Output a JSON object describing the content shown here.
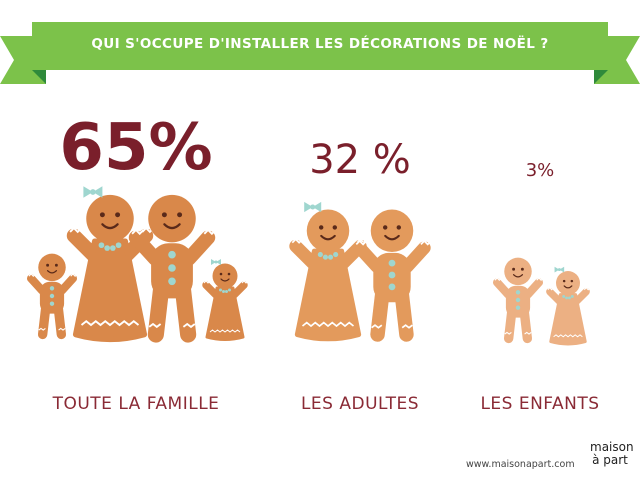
{
  "chart_data": {
    "type": "bar",
    "title": "QUI S'OCCUPE D'INSTALLER LES DÉCORATIONS DE NOËL ?",
    "categories": [
      "TOUTE LA FAMILLE",
      "LES ADULTES",
      "LES ENFANTS"
    ],
    "values": [
      65,
      32,
      3
    ],
    "value_labels": [
      "65%",
      "32 %",
      "3%"
    ],
    "unit": "%",
    "legend": "none",
    "grid": false
  },
  "footer": {
    "url": "www.maisonapart.com",
    "brand_top": "maison",
    "brand_bottom": "à part"
  },
  "colors": {
    "banner_green": "#7cc24a",
    "banner_dark_green": "#2f8a3b",
    "text_maroon": "#7a1f2b",
    "gingerbread": "#d9884a",
    "icing": "#ffffff",
    "button_teal": "#9fd6cf"
  }
}
